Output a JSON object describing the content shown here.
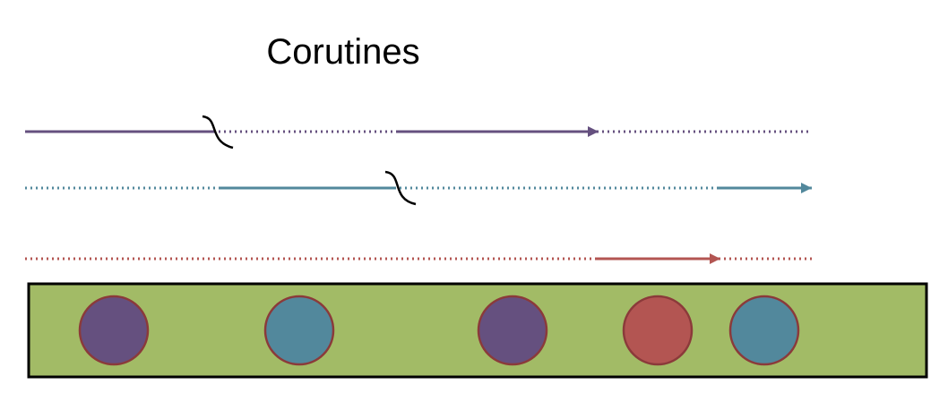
{
  "title": "Corutines",
  "colors": {
    "purple": "#65507f",
    "teal": "#52889c",
    "red": "#b35552",
    "green_bar": "#a2bb66",
    "bar_border": "#000000",
    "circle_border": "#8b3a3a",
    "break_mark": "#000000"
  },
  "lanes": [
    {
      "name": "purple",
      "color_key": "purple",
      "segments": [
        "solid",
        "break",
        "dotted",
        "solid-arrow",
        "dotted"
      ]
    },
    {
      "name": "teal",
      "color_key": "teal",
      "segments": [
        "dotted",
        "solid",
        "break",
        "dotted",
        "solid-arrow"
      ]
    },
    {
      "name": "red",
      "color_key": "red",
      "segments": [
        "dotted",
        "solid-arrow",
        "dotted"
      ]
    }
  ],
  "queue": {
    "items": [
      "purple",
      "teal",
      "purple",
      "red",
      "teal"
    ]
  }
}
